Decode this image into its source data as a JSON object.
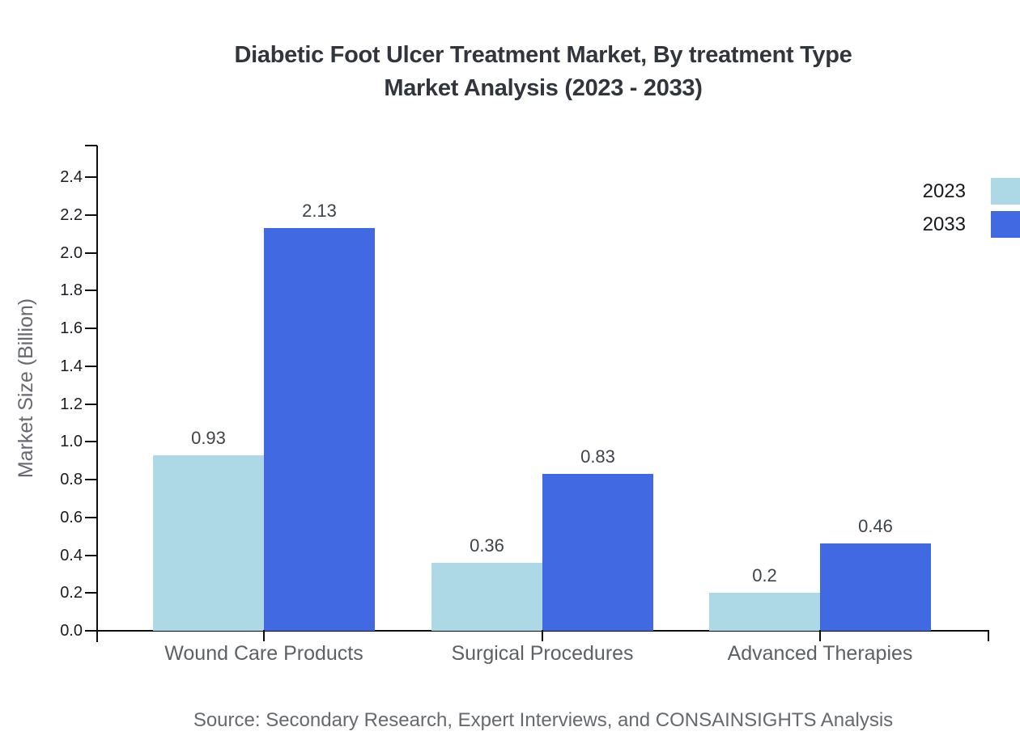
{
  "title": {
    "line1": "Diabetic Foot Ulcer Treatment Market, By treatment Type",
    "line2": "Market Analysis (2023 - 2033)"
  },
  "source": "Source: Secondary Research, Expert Interviews, and CONSAINSIGHTS Analysis",
  "chart_data": {
    "type": "bar",
    "title": "Diabetic Foot Ulcer Treatment Market, By treatment Type Market Analysis (2023 - 2033)",
    "categories": [
      "Wound Care Products",
      "Surgical Procedures",
      "Advanced Therapies"
    ],
    "series": [
      {
        "name": "2023",
        "color": "#ADD8E6",
        "values": [
          0.93,
          0.36,
          0.2
        ],
        "labels": [
          "0.93",
          "0.36",
          "0.2"
        ]
      },
      {
        "name": "2033",
        "color": "#4169E1",
        "values": [
          2.13,
          0.83,
          0.46
        ],
        "labels": [
          "2.13",
          "0.83",
          "0.46"
        ]
      }
    ],
    "xlabel": "",
    "ylabel": "Market Size (Billion)",
    "yticks": [
      "0.0",
      "0.2",
      "0.4",
      "0.6",
      "0.8",
      "1.0",
      "1.2",
      "1.4",
      "1.6",
      "1.8",
      "2.0",
      "2.2",
      "2.4"
    ],
    "ylim": [
      0,
      2.57
    ],
    "grid": false,
    "legend_position": "top-right"
  }
}
